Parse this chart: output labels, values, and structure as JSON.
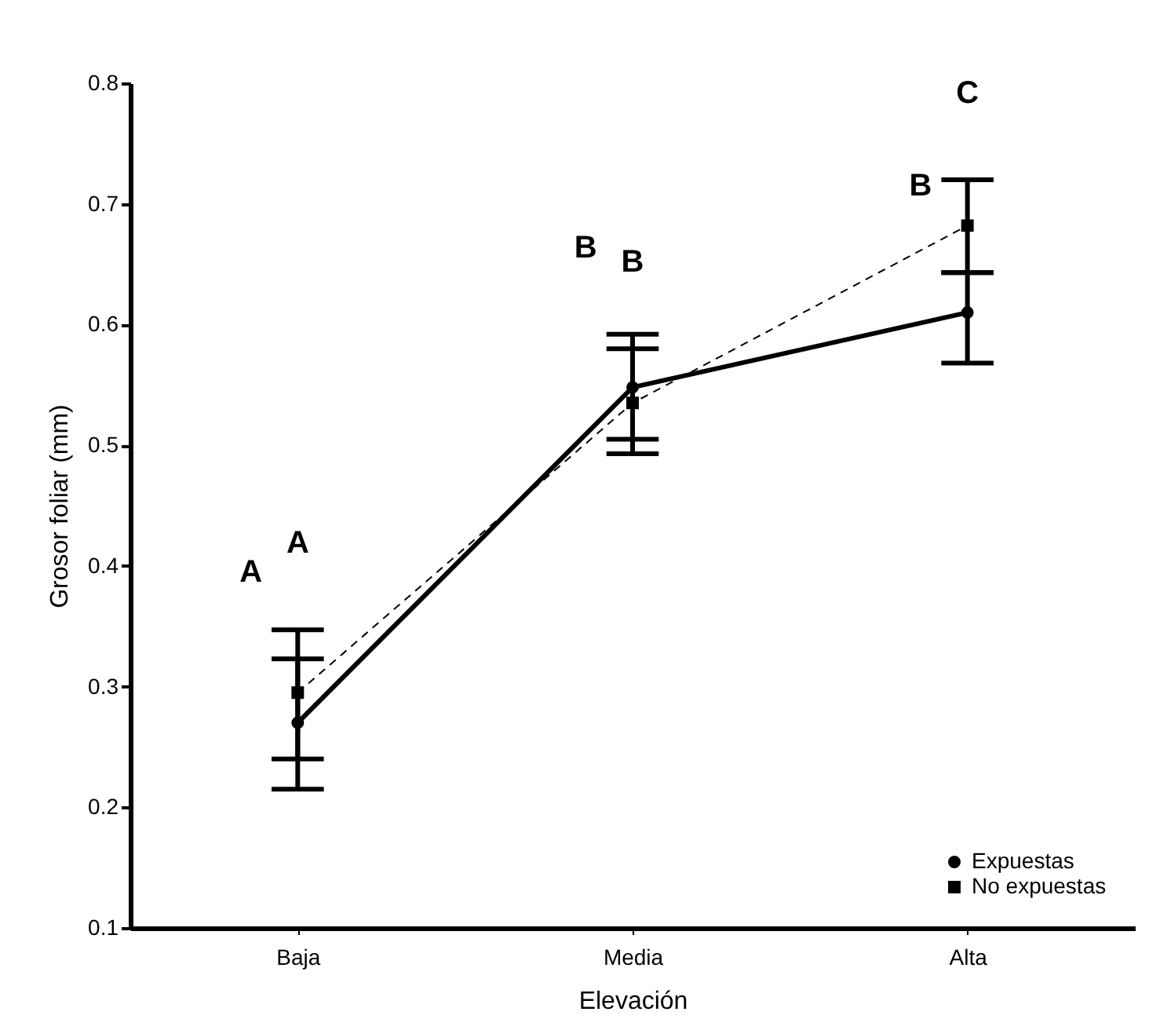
{
  "chart_data": {
    "type": "line",
    "xlabel": "Elevación",
    "ylabel": "Grosor foliar (mm)",
    "categories": [
      "Baja",
      "Media",
      "Alta"
    ],
    "series": [
      {
        "name": "Expuestas",
        "color": "#000000",
        "values": [
          0.27,
          0.548,
          0.61
        ],
        "errors": [
          [
            0.215,
            0.323
          ],
          [
            0.505,
            0.592
          ],
          [
            0.568,
            0.643
          ]
        ],
        "marker": "circle",
        "line_style": "solid"
      },
      {
        "name": "No expuestas",
        "color": "#000000",
        "values": [
          0.295,
          0.535,
          0.682
        ],
        "errors": [
          [
            0.24,
            0.347
          ],
          [
            0.493,
            0.58
          ],
          [
            0.643,
            0.72
          ]
        ],
        "marker": "square",
        "line_style": "dashed"
      }
    ],
    "ylim": [
      0.1,
      0.8
    ],
    "yticks": [
      0.1,
      0.2,
      0.3,
      0.4,
      0.5,
      0.6,
      0.7,
      0.8
    ],
    "legend": "bottom right",
    "annotations": [
      "A",
      "A",
      "B",
      "B",
      "B",
      "C"
    ]
  }
}
